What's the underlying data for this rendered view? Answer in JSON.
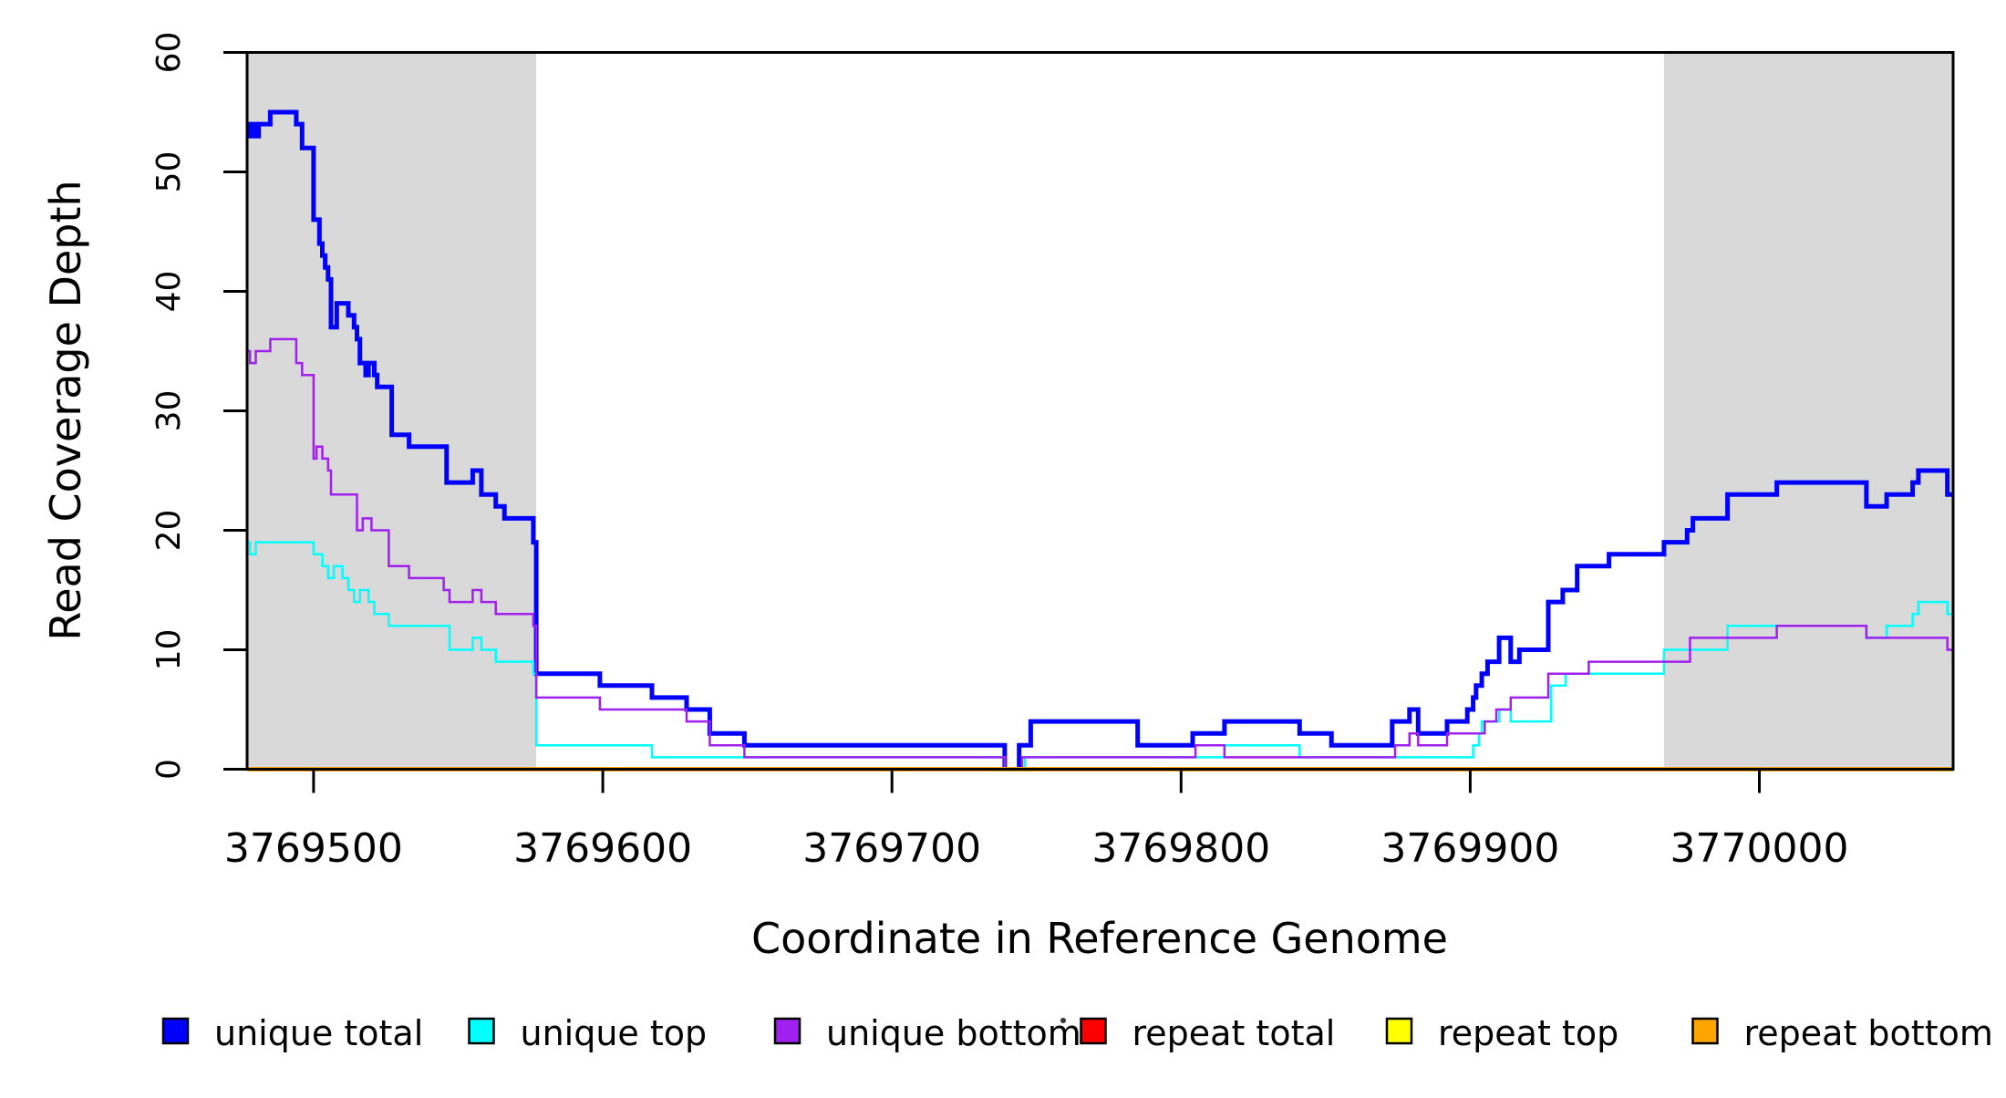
{
  "figure": {
    "xlabel": "Coordinate in Reference Genome",
    "ylabel": "Read Coverage Depth",
    "background_color": "#ffffff",
    "shaded_region_color": "#d9d9d9"
  },
  "chart_data": {
    "type": "line",
    "subtype": "step-after",
    "title": "",
    "xlabel": "Coordinate in Reference Genome",
    "ylabel": "Read Coverage Depth",
    "xlim": [
      3769477,
      3770067
    ],
    "ylim": [
      0,
      60
    ],
    "x_ticks": [
      3769500,
      3769600,
      3769700,
      3769800,
      3769900,
      3770000
    ],
    "y_ticks": [
      0,
      10,
      20,
      30,
      40,
      50,
      60
    ],
    "grid": false,
    "legend_position": "bottom",
    "shaded_regions": [
      {
        "name": "left-shaded-region",
        "x0": 3769477,
        "x1": 3769577,
        "color": "#d9d9d9"
      },
      {
        "name": "right-shaded-region",
        "x0": 3769967,
        "x1": 3770067,
        "color": "#d9d9d9"
      }
    ],
    "series": [
      {
        "name": "unique total",
        "color": "#0000ff",
        "line_width": 5,
        "steps": [
          [
            3769477,
            54
          ],
          [
            3769478,
            53
          ],
          [
            3769479,
            54
          ],
          [
            3769480,
            53
          ],
          [
            3769481,
            54
          ],
          [
            3769485,
            55
          ],
          [
            3769494,
            54
          ],
          [
            3769496,
            52
          ],
          [
            3769500,
            46
          ],
          [
            3769502,
            44
          ],
          [
            3769503,
            43
          ],
          [
            3769504,
            42
          ],
          [
            3769505,
            41
          ],
          [
            3769506,
            37
          ],
          [
            3769508,
            39
          ],
          [
            3769512,
            38
          ],
          [
            3769514,
            37
          ],
          [
            3769515,
            36
          ],
          [
            3769516,
            34
          ],
          [
            3769518,
            33
          ],
          [
            3769519,
            34
          ],
          [
            3769521,
            33
          ],
          [
            3769522,
            32
          ],
          [
            3769527,
            28
          ],
          [
            3769533,
            27
          ],
          [
            3769546,
            24
          ],
          [
            3769555,
            25
          ],
          [
            3769558,
            23
          ],
          [
            3769563,
            22
          ],
          [
            3769566,
            21
          ],
          [
            3769576,
            19
          ],
          [
            3769577,
            8
          ],
          [
            3769599,
            7
          ],
          [
            3769617,
            6
          ],
          [
            3769629,
            5
          ],
          [
            3769637,
            3
          ],
          [
            3769649,
            2
          ],
          [
            3769739,
            0
          ],
          [
            3769744,
            2
          ],
          [
            3769748,
            4
          ],
          [
            3769785,
            2
          ],
          [
            3769804,
            3
          ],
          [
            3769815,
            4
          ],
          [
            3769841,
            3
          ],
          [
            3769852,
            2
          ],
          [
            3769873,
            4
          ],
          [
            3769879,
            5
          ],
          [
            3769882,
            3
          ],
          [
            3769892,
            4
          ],
          [
            3769899,
            5
          ],
          [
            3769901,
            6
          ],
          [
            3769902,
            7
          ],
          [
            3769904,
            8
          ],
          [
            3769906,
            9
          ],
          [
            3769910,
            11
          ],
          [
            3769914,
            9
          ],
          [
            3769917,
            10
          ],
          [
            3769927,
            14
          ],
          [
            3769932,
            15
          ],
          [
            3769937,
            17
          ],
          [
            3769948,
            18
          ],
          [
            3769967,
            19
          ],
          [
            3769975,
            20
          ],
          [
            3769977,
            21
          ],
          [
            3769989,
            23
          ],
          [
            3770006,
            24
          ],
          [
            3770037,
            22
          ],
          [
            3770044,
            23
          ],
          [
            3770053,
            24
          ],
          [
            3770055,
            25
          ],
          [
            3770065,
            23
          ],
          [
            3770067,
            23
          ]
        ]
      },
      {
        "name": "unique top",
        "color": "#00ffff",
        "line_width": 2.5,
        "steps": [
          [
            3769477,
            19
          ],
          [
            3769478,
            18
          ],
          [
            3769480,
            19
          ],
          [
            3769500,
            18
          ],
          [
            3769503,
            17
          ],
          [
            3769505,
            16
          ],
          [
            3769507,
            17
          ],
          [
            3769510,
            16
          ],
          [
            3769512,
            15
          ],
          [
            3769514,
            14
          ],
          [
            3769516,
            15
          ],
          [
            3769519,
            14
          ],
          [
            3769521,
            13
          ],
          [
            3769526,
            12
          ],
          [
            3769547,
            10
          ],
          [
            3769555,
            11
          ],
          [
            3769558,
            10
          ],
          [
            3769563,
            9
          ],
          [
            3769576,
            8
          ],
          [
            3769577,
            2
          ],
          [
            3769617,
            1
          ],
          [
            3769739,
            0
          ],
          [
            3769746,
            1
          ],
          [
            3769815,
            2
          ],
          [
            3769841,
            1
          ],
          [
            3769901,
            2
          ],
          [
            3769903,
            3
          ],
          [
            3769904,
            4
          ],
          [
            3769910,
            5
          ],
          [
            3769914,
            4
          ],
          [
            3769928,
            7
          ],
          [
            3769933,
            8
          ],
          [
            3769967,
            10
          ],
          [
            3769989,
            12
          ],
          [
            3770037,
            11
          ],
          [
            3770044,
            12
          ],
          [
            3770053,
            13
          ],
          [
            3770055,
            14
          ],
          [
            3770065,
            13
          ],
          [
            3770067,
            13
          ]
        ]
      },
      {
        "name": "unique bottom",
        "color": "#a020f0",
        "line_width": 2.5,
        "steps": [
          [
            3769477,
            35
          ],
          [
            3769478,
            34
          ],
          [
            3769480,
            35
          ],
          [
            3769485,
            36
          ],
          [
            3769494,
            34
          ],
          [
            3769496,
            33
          ],
          [
            3769500,
            26
          ],
          [
            3769501,
            27
          ],
          [
            3769503,
            26
          ],
          [
            3769505,
            25
          ],
          [
            3769506,
            23
          ],
          [
            3769515,
            20
          ],
          [
            3769517,
            21
          ],
          [
            3769520,
            20
          ],
          [
            3769526,
            17
          ],
          [
            3769533,
            16
          ],
          [
            3769545,
            15
          ],
          [
            3769547,
            14
          ],
          [
            3769555,
            15
          ],
          [
            3769558,
            14
          ],
          [
            3769563,
            13
          ],
          [
            3769576,
            12
          ],
          [
            3769577,
            6
          ],
          [
            3769599,
            5
          ],
          [
            3769629,
            4
          ],
          [
            3769637,
            2
          ],
          [
            3769649,
            1
          ],
          [
            3769739,
            0
          ],
          [
            3769745,
            1
          ],
          [
            3769805,
            2
          ],
          [
            3769815,
            1
          ],
          [
            3769874,
            2
          ],
          [
            3769879,
            3
          ],
          [
            3769882,
            2
          ],
          [
            3769892,
            3
          ],
          [
            3769905,
            4
          ],
          [
            3769909,
            5
          ],
          [
            3769914,
            6
          ],
          [
            3769927,
            8
          ],
          [
            3769941,
            9
          ],
          [
            3769976,
            11
          ],
          [
            3770006,
            12
          ],
          [
            3770037,
            11
          ],
          [
            3770065,
            10
          ],
          [
            3770067,
            10
          ]
        ]
      },
      {
        "name": "repeat total",
        "color": "#ff0000",
        "line_width": 2.5,
        "steps": [
          [
            3769477,
            0
          ],
          [
            3770067,
            0
          ]
        ]
      },
      {
        "name": "repeat top",
        "color": "#ffff00",
        "line_width": 2.5,
        "steps": [
          [
            3769477,
            0
          ],
          [
            3770067,
            0
          ]
        ]
      },
      {
        "name": "repeat bottom",
        "color": "#ffa500",
        "line_width": 5,
        "steps": [
          [
            3769477,
            0
          ],
          [
            3770067,
            0
          ]
        ]
      }
    ]
  }
}
